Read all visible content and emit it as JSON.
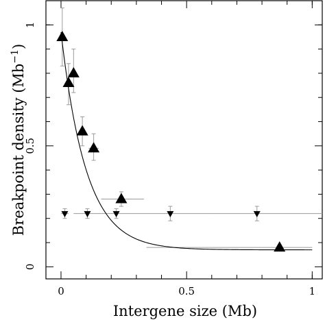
{
  "chart_data": {
    "type": "scatter",
    "title": "",
    "xlabel": "Intergene size (Mb)",
    "ylabel": "Breakpoint density (Mb",
    "ylabel_superscript": "−1",
    "ylabel_close": ")",
    "xlim": [
      -0.06,
      1.04
    ],
    "ylim": [
      -0.05,
      1.1
    ],
    "x_ticks": [
      0,
      0.5,
      1
    ],
    "x_tick_labels": [
      "0",
      "0.5",
      "1"
    ],
    "y_ticks": [
      0,
      0.5,
      1
    ],
    "y_tick_labels": [
      "0",
      "0.5",
      "1"
    ],
    "grid": false,
    "series": [
      {
        "marker": "triangle-up",
        "color": "#000000",
        "points": [
          {
            "x": 0.005,
            "y": 0.95,
            "xerr": [
              0.0,
              0.01
            ],
            "yerr": [
              0.83,
              1.07
            ]
          },
          {
            "x": 0.03,
            "y": 0.76,
            "xerr": [
              0.02,
              0.04
            ],
            "yerr": [
              0.67,
              0.84
            ]
          },
          {
            "x": 0.05,
            "y": 0.8,
            "xerr": [
              0.04,
              0.06
            ],
            "yerr": [
              0.72,
              0.9
            ]
          },
          {
            "x": 0.085,
            "y": 0.56,
            "xerr": [
              0.075,
              0.095
            ],
            "yerr": [
              0.5,
              0.62
            ]
          },
          {
            "x": 0.13,
            "y": 0.49,
            "xerr": [
              0.11,
              0.15
            ],
            "yerr": [
              0.44,
              0.55
            ]
          },
          {
            "x": 0.24,
            "y": 0.28,
            "xerr": [
              0.16,
              0.33
            ],
            "yerr": [
              0.25,
              0.31
            ]
          },
          {
            "x": 0.87,
            "y": 0.08,
            "xerr": [
              0.34,
              1.0
            ],
            "yerr": [
              0.07,
              0.09
            ]
          }
        ]
      },
      {
        "marker": "triangle-down",
        "color": "#000000",
        "points": [
          {
            "x": 0.015,
            "y": 0.22,
            "xerr": [
              0.0,
              0.03
            ],
            "yerr": [
              0.2,
              0.24
            ]
          },
          {
            "x": 0.105,
            "y": 0.22,
            "xerr": [
              0.05,
              0.16
            ],
            "yerr": [
              0.2,
              0.24
            ]
          },
          {
            "x": 0.22,
            "y": 0.22,
            "xerr": [
              0.16,
              0.28
            ],
            "yerr": [
              0.2,
              0.24
            ]
          },
          {
            "x": 0.435,
            "y": 0.22,
            "xerr": [
              0.28,
              0.6
            ],
            "yerr": [
              0.19,
              0.25
            ]
          },
          {
            "x": 0.78,
            "y": 0.22,
            "xerr": [
              0.6,
              1.04
            ],
            "yerr": [
              0.19,
              0.25
            ]
          }
        ]
      }
    ],
    "fit_curve": {
      "type": "exponential",
      "amplitude": 0.9,
      "rate": 10.0,
      "offset": 0.07,
      "x_range": [
        0.0,
        1.0
      ],
      "color": "#000000"
    }
  }
}
